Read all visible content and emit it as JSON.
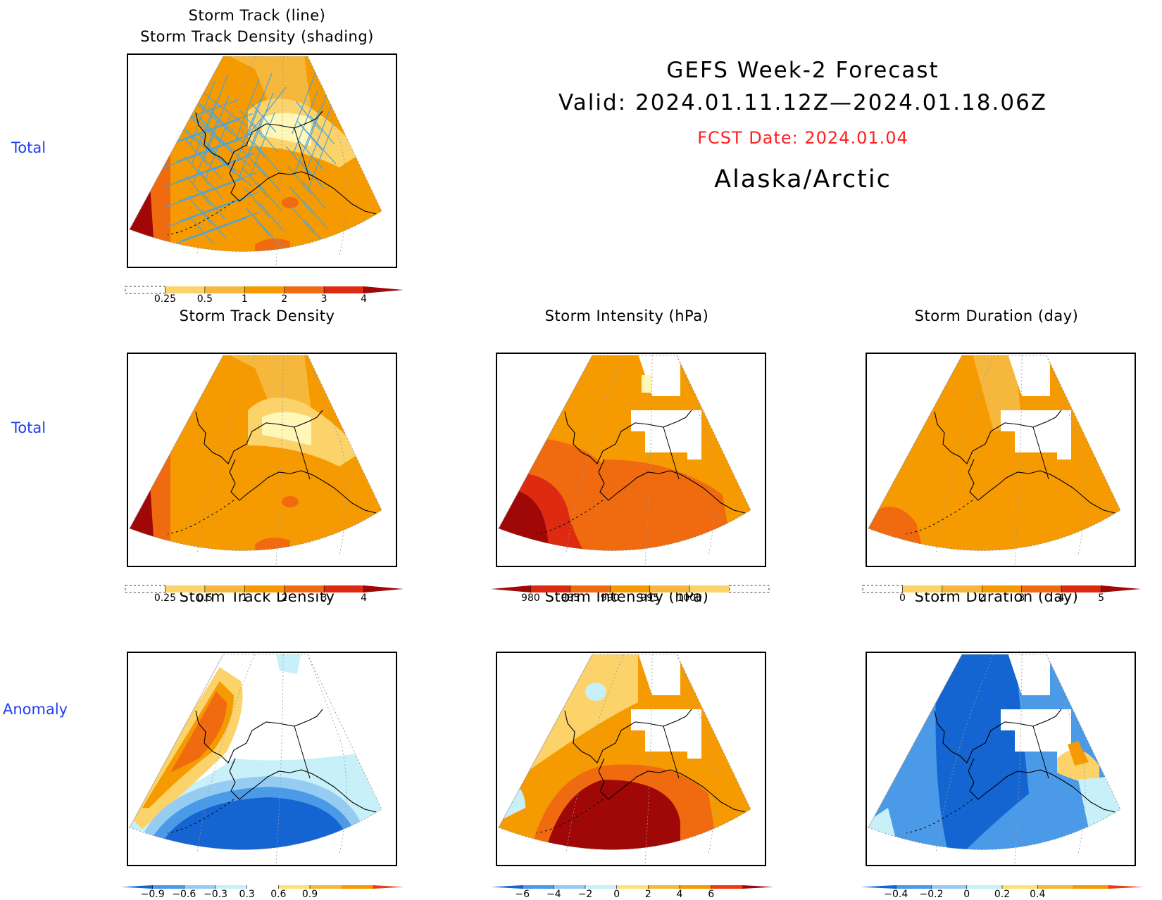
{
  "header": {
    "title_line1": "GEFS Week-2 Forecast",
    "title_line2": "Valid: 2024.01.11.12Z—2024.01.18.06Z",
    "fcst_date": "FCST Date: 2024.01.04",
    "region": "Alaska/Arctic",
    "fcst_color": "#ff2020"
  },
  "row_labels": {
    "row1": "Total",
    "row2": "Total",
    "row3": "Anomaly"
  },
  "panels": {
    "top": {
      "title_line1": "Storm Track (line)",
      "title_line2": "Storm Track Density (shading)"
    },
    "r2c1": {
      "title": "Storm Track Density"
    },
    "r2c2": {
      "title": "Storm Intensity (hPa)"
    },
    "r2c3": {
      "title": "Storm Duration (day)"
    },
    "r3c1": {
      "title": "Storm Track Density"
    },
    "r3c2": {
      "title": "Storm Intensity (hPa)"
    },
    "r3c3": {
      "title": "Storm Duration (day)"
    }
  },
  "colorbars": {
    "density_total": {
      "ticks": [
        "0.25",
        "0.5",
        "1",
        "2",
        "3",
        "4"
      ],
      "colors": [
        "#fff7b8",
        "#fbd36a",
        "#f5b83c",
        "#f59a00",
        "#f06a10",
        "#dd2a10",
        "#a00808"
      ]
    },
    "intensity_total": {
      "ticks": [
        "980",
        "985",
        "990",
        "995",
        "1000"
      ],
      "colors": [
        "#a00808",
        "#dd2a10",
        "#f06a10",
        "#f59a00",
        "#f5b83c",
        "#fbd36a",
        "#fff7b8"
      ]
    },
    "duration_total": {
      "ticks": [
        "0",
        "1",
        "2",
        "3",
        "4",
        "5"
      ],
      "colors": [
        "#fff7b8",
        "#fbd36a",
        "#f5b83c",
        "#f59a00",
        "#f06a10",
        "#dd2a10",
        "#a00808"
      ]
    },
    "density_anom": {
      "ticks": [
        "−0.9",
        "−0.6",
        "−0.3",
        "0.3",
        "0.6",
        "0.9"
      ],
      "colors": [
        "#1464d2",
        "#4a9ae8",
        "#96ccf2",
        "#c8f0f8",
        "#ffffff",
        "#fbe37a",
        "#f5b83c",
        "#f59a00",
        "#ee3a10"
      ]
    },
    "intensity_anom": {
      "ticks": [
        "−6",
        "−4",
        "−2",
        "0",
        "2",
        "4",
        "6"
      ],
      "colors": [
        "#1464d2",
        "#4a9ae8",
        "#96ccf2",
        "#c8f0f8",
        "#fbe37a",
        "#f5b83c",
        "#f59a00",
        "#ee3a10",
        "#a00808"
      ]
    },
    "duration_anom": {
      "ticks": [
        "−0.4",
        "−0.2",
        "0",
        "0.2",
        "0.4"
      ],
      "colors": [
        "#1464d2",
        "#4a9ae8",
        "#96ccf2",
        "#c8f0f8",
        "#fbe37a",
        "#f5b83c",
        "#f59a00",
        "#ee3a10"
      ]
    }
  },
  "palette": {
    "track_line": "#4aa3e0",
    "dark_red": "#a00808",
    "red": "#dd2a10",
    "orange_red": "#f06a10",
    "orange": "#f59a00",
    "light_orange": "#f5b83c",
    "yellow": "#fbd36a",
    "pale_yellow": "#fff7b8",
    "dark_blue": "#1464d2",
    "blue": "#4a9ae8",
    "light_blue": "#96ccf2",
    "pale_blue": "#c8f0f8"
  }
}
